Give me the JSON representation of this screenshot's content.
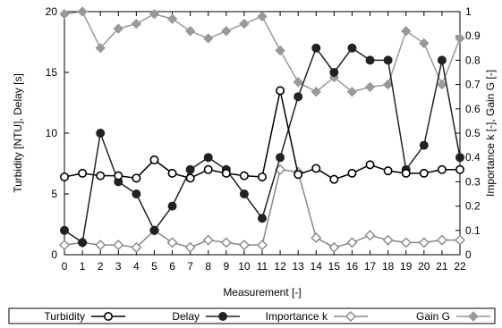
{
  "chart_data": {
    "type": "line",
    "xlabel": "Measurement [-]",
    "ylabel_left": "Turbidity [NTU], Delay [s]",
    "ylabel_right": "Importance k [-], Gain G [-]",
    "x": [
      0,
      1,
      2,
      3,
      4,
      5,
      6,
      7,
      8,
      9,
      10,
      11,
      12,
      13,
      14,
      15,
      16,
      17,
      18,
      19,
      20,
      21,
      22
    ],
    "xlim": [
      0,
      22
    ],
    "ylim_left": [
      0,
      20
    ],
    "ylim_right": [
      0,
      1
    ],
    "yticks_left": [
      "0",
      "5",
      "10",
      "15",
      "20"
    ],
    "yticks_right": [
      "0",
      "0.1",
      "0.2",
      "0.3",
      "0.4",
      "0.5",
      "0.6",
      "0.7",
      "0.8",
      "0.9",
      "1"
    ],
    "grid": false,
    "legend_position": "bottom",
    "series": [
      {
        "name": "Turbidity",
        "axis": "left",
        "marker": "open-circle",
        "color": "#000000",
        "values": [
          6.4,
          6.7,
          6.5,
          6.5,
          6.3,
          7.8,
          6.7,
          6.3,
          7.0,
          6.7,
          6.5,
          6.4,
          13.5,
          6.6,
          7.1,
          6.2,
          6.7,
          7.4,
          6.9,
          6.7,
          6.7,
          7.0,
          7.0
        ]
      },
      {
        "name": "Delay",
        "axis": "left",
        "marker": "filled-circle",
        "color": "#222222",
        "values": [
          2,
          1,
          10,
          6,
          5,
          2,
          4,
          7,
          8,
          7,
          5,
          3,
          8,
          13,
          17,
          15,
          17,
          16,
          16,
          7,
          9,
          16,
          8
        ]
      },
      {
        "name": "Importance k",
        "axis": "right",
        "marker": "open-diamond",
        "color": "#888888",
        "values": [
          0.04,
          0.05,
          0.04,
          0.04,
          0.03,
          0.1,
          0.05,
          0.03,
          0.06,
          0.05,
          0.04,
          0.04,
          0.35,
          0.34,
          0.07,
          0.03,
          0.05,
          0.08,
          0.06,
          0.05,
          0.05,
          0.06,
          0.06
        ]
      },
      {
        "name": "Gain G",
        "axis": "right",
        "marker": "filled-diamond",
        "color": "#999999",
        "values": [
          0.99,
          1.0,
          0.85,
          0.93,
          0.95,
          0.99,
          0.97,
          0.92,
          0.89,
          0.92,
          0.95,
          0.98,
          0.84,
          0.71,
          0.67,
          0.73,
          0.67,
          0.69,
          0.7,
          0.92,
          0.87,
          0.7,
          0.89
        ]
      }
    ]
  }
}
